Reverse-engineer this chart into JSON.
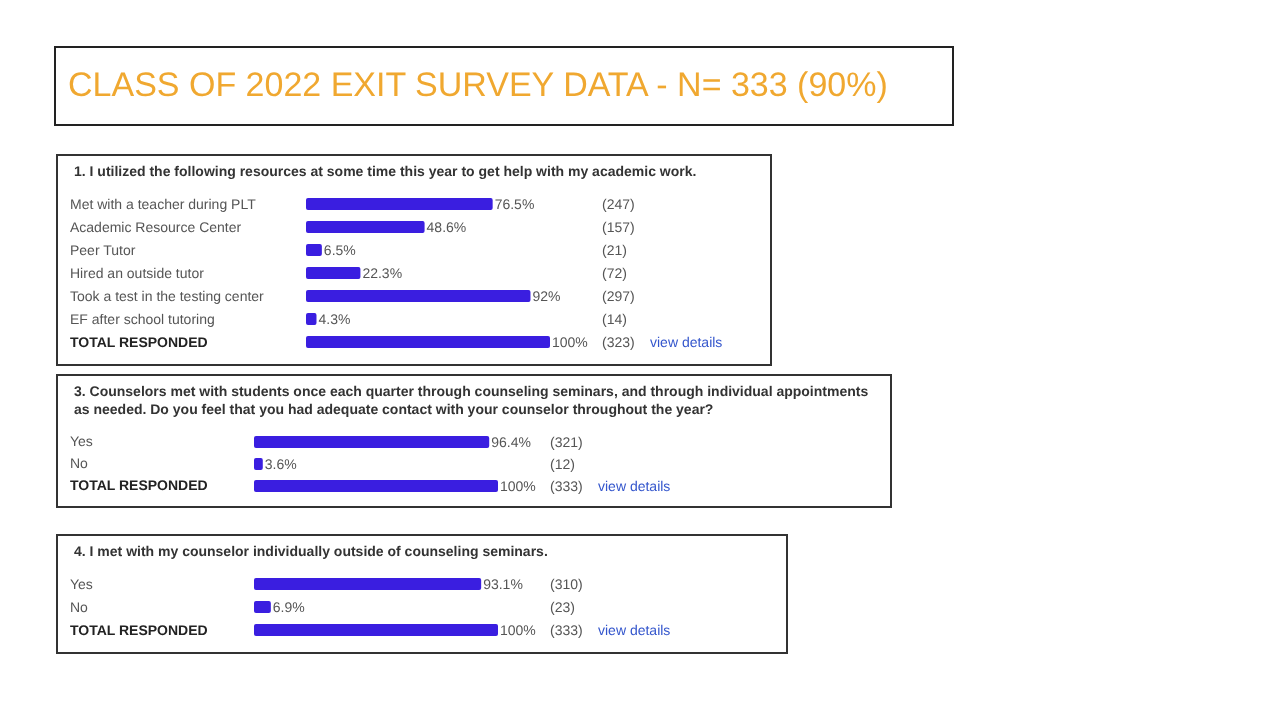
{
  "chart_data": [
    {
      "type": "bar",
      "orientation": "horizontal",
      "title": "CLASS OF 2022 EXIT SURVEY DATA - N= 333 (90%)",
      "subtitle": "1.  I utilized the following resources at some time this year to get help with my academic work.",
      "categories": [
        "Met with a teacher during PLT",
        "Academic Resource Center",
        "Peer Tutor",
        "Hired an outside tutor",
        "Took a test in the testing center",
        "EF after school tutoring",
        "TOTAL RESPONDED"
      ],
      "values": [
        76.5,
        48.6,
        6.5,
        22.3,
        92,
        4.3,
        100
      ],
      "value_labels": [
        "76.5%",
        "48.6%",
        "6.5%",
        "22.3%",
        "92%",
        "4.3%",
        "100%"
      ],
      "color": "#3a1ee0",
      "xlim": [
        0,
        100
      ],
      "tick_labels": false,
      "annotations": [
        "(247)",
        "(157)",
        "(21)",
        "(72)",
        "(297)",
        "(14)",
        "(323)",
        "view details"
      ]
    },
    {
      "type": "bar",
      "orientation": "horizontal",
      "title": "3.  Counselors met with students once each quarter through counseling seminars, and through individual appointments as needed. Do you feel that you had adequate contact with your counselor throughout the year?",
      "categories": [
        "Yes",
        "No",
        "TOTAL RESPONDED"
      ],
      "values": [
        96.4,
        3.6,
        100
      ],
      "value_labels": [
        "96.4%",
        "3.6%",
        "100%"
      ],
      "color": "#3a1ee0",
      "xlim": [
        0,
        100
      ],
      "tick_labels": false,
      "annotations": [
        "(321)",
        "(12)",
        "(333)",
        "view details"
      ]
    },
    {
      "type": "bar",
      "orientation": "horizontal",
      "title": "4.  I met with my counselor individually outside of counseling seminars.",
      "categories": [
        "Yes",
        "No",
        "TOTAL RESPONDED"
      ],
      "values": [
        93.1,
        6.9,
        100
      ],
      "value_labels": [
        "93.1%",
        "6.9%",
        "100%"
      ],
      "color": "#3a1ee0",
      "xlim": [
        0,
        100
      ],
      "tick_labels": false,
      "annotations": [
        "(310)",
        "(23)",
        "(333)",
        "view details"
      ]
    }
  ]
}
